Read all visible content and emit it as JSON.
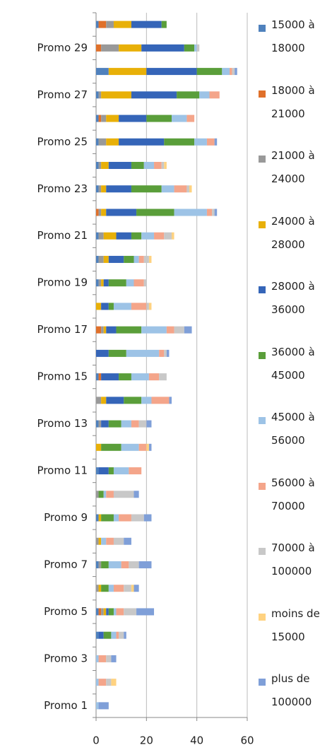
{
  "chart_data": {
    "type": "stacked_barh",
    "categories": [
      "Promo 1",
      null,
      "Promo 3",
      null,
      "Promo 5",
      null,
      "Promo 7",
      null,
      "Promo 9",
      null,
      "Promo 11",
      null,
      "Promo 13",
      null,
      "Promo 15",
      null,
      "Promo 17",
      null,
      "Promo 19",
      null,
      "Promo 21",
      null,
      "Promo 23",
      null,
      "Promo 25",
      null,
      "Promo 27",
      null,
      "Promo 29",
      null
    ],
    "series": [
      {
        "name": "15000 à 18000",
        "color": "#4f81bd",
        "values": [
          0,
          0,
          0,
          1,
          1,
          0,
          1,
          0,
          1,
          0,
          1,
          0,
          1,
          0,
          1,
          0,
          0,
          0,
          1,
          1,
          1,
          0,
          1,
          1,
          1,
          1,
          1,
          5,
          0,
          1
        ]
      },
      {
        "name": "18000 à 21000",
        "color": "#e0702a",
        "values": [
          0,
          0,
          0,
          0,
          1,
          0,
          0,
          0,
          0,
          0,
          0,
          0,
          0,
          0,
          1,
          0,
          2,
          0,
          0,
          0,
          0,
          1,
          0,
          0,
          0,
          1,
          0,
          0,
          2,
          3
        ]
      },
      {
        "name": "21000 à 24000",
        "color": "#999999",
        "values": [
          0,
          0,
          0,
          0,
          1,
          1,
          1,
          1,
          0,
          1,
          0,
          0,
          1,
          2,
          0,
          0,
          1,
          0,
          1,
          2,
          2,
          1,
          1,
          1,
          3,
          2,
          1,
          0,
          7,
          3
        ]
      },
      {
        "name": "24000 à 28000",
        "color": "#e8b008",
        "values": [
          0,
          0,
          0,
          0,
          1,
          1,
          0,
          1,
          1,
          0,
          0,
          2,
          0,
          2,
          0,
          0,
          1,
          2,
          1,
          2,
          5,
          2,
          2,
          3,
          5,
          5,
          12,
          15,
          9,
          7
        ]
      },
      {
        "name": "28000 à 36000",
        "color": "#3565b8",
        "values": [
          0,
          0,
          0,
          2,
          1,
          0,
          0,
          0,
          0,
          0,
          4,
          0,
          3,
          7,
          7,
          5,
          4,
          3,
          2,
          6,
          6,
          12,
          10,
          9,
          18,
          11,
          18,
          20,
          17,
          12
        ]
      },
      {
        "name": "36000 à 45000",
        "color": "#5a9e3a",
        "values": [
          0,
          0,
          0,
          3,
          2,
          3,
          3,
          0,
          5,
          2,
          2,
          8,
          5,
          7,
          5,
          7,
          10,
          2,
          7,
          4,
          4,
          15,
          12,
          5,
          12,
          10,
          9,
          10,
          4,
          2
        ]
      },
      {
        "name": "45000 à 56000",
        "color": "#9dc3e6",
        "values": [
          1,
          1,
          1,
          2,
          1,
          2,
          5,
          2,
          2,
          1,
          6,
          7,
          4,
          4,
          7,
          13,
          10,
          7,
          3,
          2,
          5,
          13,
          5,
          4,
          5,
          6,
          4,
          3,
          1,
          0
        ]
      },
      {
        "name": "56000 à 70000",
        "color": "#f4a58a",
        "values": [
          0,
          3,
          3,
          1,
          3,
          4,
          3,
          3,
          5,
          3,
          5,
          3,
          3,
          7,
          4,
          2,
          3,
          6,
          4,
          2,
          4,
          2,
          5,
          3,
          3,
          3,
          4,
          1,
          0,
          0
        ]
      },
      {
        "name": "70000 à 100000",
        "color": "#c8c8c8",
        "values": [
          0,
          2,
          2,
          2,
          5,
          3,
          4,
          4,
          5,
          8,
          0,
          0,
          3,
          0,
          3,
          1,
          4,
          1,
          1,
          2,
          3,
          1,
          1,
          1,
          0,
          0,
          0,
          1,
          1,
          0
        ]
      },
      {
        "name": "moins de 15000",
        "color": "#ffd280",
        "values": [
          0,
          2,
          0,
          0,
          0,
          1,
          0,
          0,
          0,
          0,
          0,
          1,
          0,
          0,
          0,
          0,
          0,
          1,
          0,
          1,
          1,
          0,
          1,
          1,
          0,
          0,
          0,
          0,
          0,
          0
        ]
      },
      {
        "name": "plus de 100000",
        "color": "#7f9fd8",
        "values": [
          4,
          0,
          2,
          1,
          7,
          2,
          5,
          3,
          3,
          2,
          0,
          1,
          2,
          1,
          0,
          1,
          3,
          0,
          0,
          0,
          0,
          1,
          0,
          0,
          1,
          0,
          0,
          1,
          0,
          0
        ]
      }
    ],
    "xlim": [
      0,
      60
    ],
    "xticks": [
      0,
      20,
      40,
      60
    ],
    "grid": true
  }
}
